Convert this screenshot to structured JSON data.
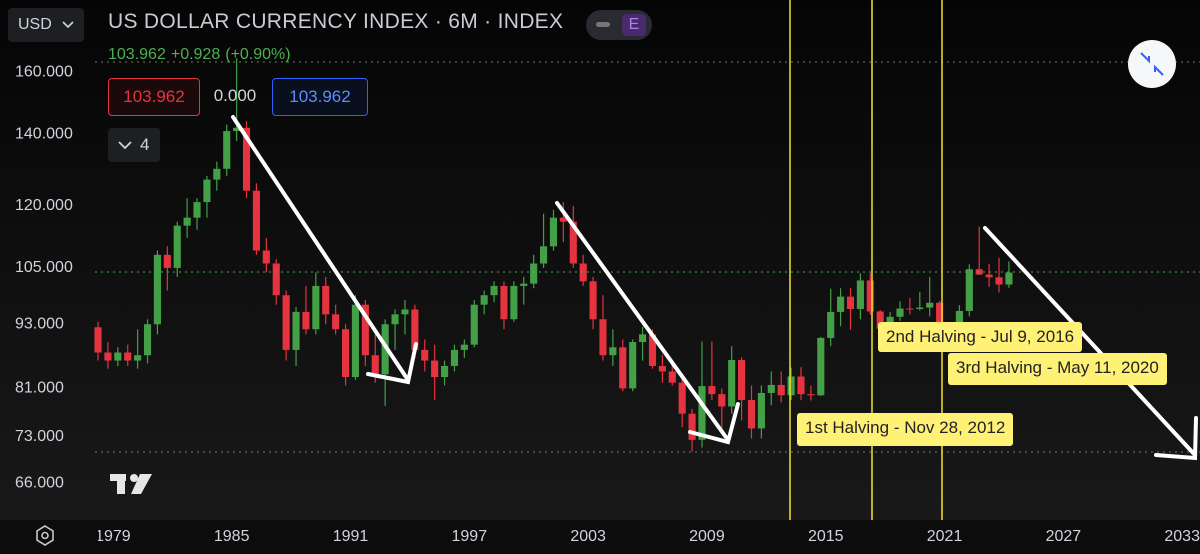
{
  "ui": {
    "symbol": "USD",
    "badge": "E",
    "legend_count": "4",
    "box_left": "103.962",
    "box_mid": "0.000",
    "box_right": "103.962"
  },
  "chart_data": {
    "type": "candlestick",
    "title": "US DOLLAR CURRENCY INDEX · 6M · INDEX",
    "last": "103.962",
    "change": "+0.928",
    "change_pct": "(+0.90%)",
    "log_scale": true,
    "grid": false,
    "up_color": "#43a047",
    "down_color": "#e5333f",
    "xlim": [
      1973.3,
      2033.9
    ],
    "xticks": [
      1979,
      1985,
      1991,
      1997,
      2003,
      2009,
      2015,
      2021,
      2027,
      2033
    ],
    "ylim": [
      61,
      187
    ],
    "yticks": [
      {
        "value": 66,
        "label": "66.000"
      },
      {
        "value": 73,
        "label": "73.000"
      },
      {
        "value": 81,
        "label": "81.000"
      },
      {
        "value": 93,
        "label": "93.000"
      },
      {
        "value": 105,
        "label": "105.000"
      },
      {
        "value": 120,
        "label": "120.000"
      },
      {
        "value": 140,
        "label": "140.000"
      },
      {
        "value": 160,
        "label": "160.000"
      }
    ],
    "x": [
      1978,
      1978.5,
      1979,
      1979.5,
      1980,
      1980.5,
      1981,
      1981.5,
      1982,
      1982.5,
      1983,
      1983.5,
      1984,
      1984.5,
      1985,
      1985.5,
      1986,
      1986.5,
      1987,
      1987.5,
      1988,
      1988.5,
      1989,
      1989.5,
      1990,
      1990.5,
      1991,
      1991.5,
      1992,
      1992.5,
      1993,
      1993.5,
      1994,
      1994.5,
      1995,
      1995.5,
      1996,
      1996.5,
      1997,
      1997.5,
      1998,
      1998.5,
      1999,
      1999.5,
      2000,
      2000.5,
      2001,
      2001.5,
      2002,
      2002.5,
      2003,
      2003.5,
      2004,
      2004.5,
      2005,
      2005.5,
      2006,
      2006.5,
      2007,
      2007.5,
      2008,
      2008.5,
      2009,
      2009.5,
      2010,
      2010.5,
      2011,
      2011.5,
      2012,
      2012.5,
      2013,
      2013.5,
      2014,
      2014.5,
      2015,
      2015.5,
      2016,
      2016.5,
      2017,
      2017.5,
      2018,
      2018.5,
      2019,
      2019.5,
      2020,
      2020.5,
      2021,
      2021.5,
      2022,
      2022.5,
      2023,
      2023.5,
      2024
    ],
    "open": [
      92.4,
      87.5,
      86,
      87.5,
      86,
      87,
      93,
      108,
      105,
      115,
      117,
      121,
      127,
      130,
      141,
      142,
      124,
      109,
      106,
      99,
      88,
      95.5,
      92,
      101,
      95,
      92,
      83,
      97,
      87,
      83.5,
      93,
      95,
      96,
      88,
      86,
      83,
      85,
      88,
      89,
      97,
      99,
      101,
      94,
      101,
      101.5,
      106,
      110,
      117,
      116,
      106,
      102,
      94,
      87,
      88.5,
      81,
      89.5,
      91,
      85,
      84,
      82,
      76.7,
      72.5,
      81.4,
      80,
      77.9,
      86.1,
      79,
      74.3,
      80.2,
      81.6,
      79.8,
      83.1,
      80,
      79.8,
      90.3,
      95.5,
      98.7,
      96.1,
      102.2,
      95.6,
      92.1,
      94.5,
      96.2,
      96.1,
      96.4,
      97.4,
      89.9,
      92.4,
      95.7,
      104.7,
      103.5,
      102.9,
      101.3
    ],
    "high": [
      93.5,
      89.5,
      88.5,
      89,
      92,
      94,
      109,
      110,
      116,
      122,
      122,
      128,
      132,
      143,
      165,
      144,
      126,
      112,
      107,
      100,
      96.5,
      101,
      104,
      103,
      97,
      93,
      99,
      98,
      91,
      94,
      96,
      98,
      97,
      90,
      89,
      86,
      89,
      90,
      98,
      100,
      102,
      102,
      102,
      103,
      108,
      118,
      119,
      121,
      120,
      108,
      103,
      99,
      92,
      90,
      90,
      92.5,
      92,
      87,
      85.5,
      83,
      77.5,
      89.6,
      89.6,
      81,
      88.7,
      86.6,
      81.5,
      81.5,
      84,
      84,
      84.7,
      84.8,
      81.5,
      90.5,
      100.4,
      100.5,
      100.5,
      103.8,
      103.8,
      95.9,
      95.5,
      97.7,
      98.4,
      99.7,
      103,
      97.8,
      93.4,
      96.9,
      105.8,
      114.8,
      105.9,
      107.3,
      106.5
    ],
    "low": [
      86,
      84.5,
      85,
      85,
      84.5,
      85.5,
      91,
      100,
      103,
      112,
      114,
      117,
      124,
      128,
      138,
      122,
      108,
      104,
      97,
      86,
      85,
      91,
      91,
      93,
      91,
      81.5,
      82.5,
      85,
      82,
      78,
      88,
      91,
      86.5,
      84,
      79,
      81.5,
      84,
      86.5,
      88.5,
      95,
      97.5,
      92,
      93.5,
      97,
      100.5,
      105,
      109,
      111,
      105,
      101,
      92,
      86,
      85,
      80.5,
      80.5,
      86,
      84.5,
      82,
      81.5,
      74.5,
      70.7,
      71.3,
      79,
      74.2,
      76.7,
      75.6,
      72.7,
      72.7,
      78.1,
      78.6,
      79,
      79,
      78.9,
      79.7,
      88.7,
      92.6,
      91.9,
      94,
      94.9,
      91,
      88.3,
      93.7,
      95,
      95.8,
      94.6,
      89.4,
      89.2,
      91.8,
      94.6,
      103.4,
      100.8,
      99.6,
      100.6
    ],
    "close": [
      87.5,
      86,
      87.5,
      86,
      87,
      93,
      108,
      105,
      115,
      117,
      121,
      127,
      130,
      141,
      142,
      124,
      109,
      106,
      99,
      88,
      95.5,
      92,
      101,
      95,
      92,
      83,
      97,
      87,
      83.5,
      93,
      95,
      96,
      88,
      86,
      83,
      85,
      88,
      89,
      97,
      99,
      101,
      94,
      101,
      101.5,
      106,
      110,
      117,
      116,
      106,
      102,
      94,
      87,
      88.5,
      81,
      89.5,
      91,
      85,
      84,
      82,
      76.7,
      72.5,
      81.4,
      80,
      77.9,
      86.1,
      79,
      74.3,
      80.2,
      81.6,
      79.8,
      83.1,
      80,
      79.8,
      90.3,
      95.5,
      98.7,
      96.1,
      102.2,
      95.6,
      92.1,
      94.5,
      96.2,
      96.1,
      96.4,
      97.4,
      89.9,
      92.4,
      95.7,
      104.7,
      103.5,
      102.9,
      101.3,
      103.962
    ],
    "annotations": [
      "1st Halving - Nov 28, 2012",
      "2nd Halving - Jul 9, 2016",
      "3rd Halving - May 11, 2020"
    ]
  }
}
